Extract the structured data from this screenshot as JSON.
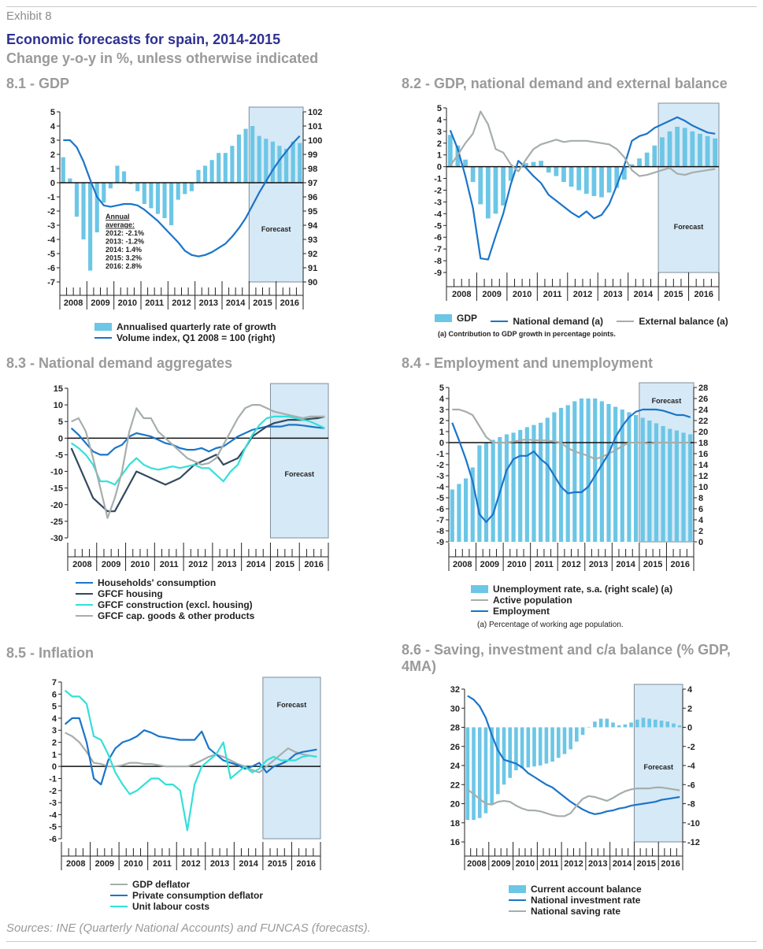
{
  "header": {
    "exhibit": "Exhibit 8",
    "title": "Economic forecasts for spain, 2014-2015",
    "subtitle": "Change y-o-y in %, unless otherwise indicated"
  },
  "sources": "Sources: INE (Quarterly National Accounts) and FUNCAS (forecasts).",
  "colors": {
    "bar": "#6cc6e6",
    "dark_blue": "#1b75c9",
    "gray": "#a6aeab",
    "navy": "#34495e",
    "cyan": "#33e0d8",
    "forecast_fill": "#d6e9f6",
    "forecast_border": "#7d8d9a"
  },
  "chart_data": [
    {
      "id": "8.1",
      "title": "8.1 - GDP",
      "type": "bar",
      "years": [
        "2008",
        "2009",
        "2010",
        "2011",
        "2012",
        "2013",
        "2014",
        "2015",
        "2016"
      ],
      "ylim": [
        -7,
        5
      ],
      "yticks": [
        5,
        4,
        3,
        2,
        1,
        0,
        -1,
        -2,
        -3,
        -4,
        -5,
        -6,
        -7
      ],
      "y2lim": [
        90,
        102
      ],
      "y2ticks": [
        102,
        101,
        100,
        99,
        98,
        97,
        96,
        95,
        94,
        93,
        92,
        91,
        90
      ],
      "forecast_from_quarter": 28,
      "forecast_label": "Forecast",
      "annotation": [
        "Annual",
        "average:",
        "2012:  -2.1%",
        "2013:  -1.2%",
        "2014:   1.4%",
        "2015:   3.2%",
        "2016:   2.8%"
      ],
      "series": [
        {
          "name": "Annualised quarterly rate of growth",
          "kind": "bar",
          "color": "#6cc6e6",
          "values": [
            1.8,
            0.3,
            -2.4,
            -4.0,
            -6.2,
            -3.5,
            -1.4,
            -0.4,
            1.2,
            0.8,
            -0.1,
            -0.6,
            -1.5,
            -1.8,
            -2.2,
            -2.5,
            -3.0,
            -1.2,
            -0.8,
            -0.6,
            0.9,
            1.2,
            1.6,
            2.1,
            2.1,
            2.6,
            3.4,
            3.8,
            4.0,
            3.3,
            3.1,
            2.9,
            2.6,
            2.4,
            2.9,
            2.8
          ]
        },
        {
          "name": "Volume index, Q1 2008 = 100 (right)",
          "kind": "line",
          "axis": "right",
          "color": "#1b75c9",
          "values": [
            100.0,
            100.0,
            99.5,
            98.5,
            97.2,
            96.0,
            95.4,
            95.3,
            95.4,
            95.5,
            95.5,
            95.4,
            95.1,
            94.7,
            94.3,
            93.8,
            93.3,
            92.8,
            92.2,
            91.9,
            91.8,
            91.9,
            92.1,
            92.4,
            92.7,
            93.2,
            93.8,
            94.5,
            95.4,
            96.3,
            97.1,
            97.9,
            98.6,
            99.2,
            99.8,
            100.3
          ]
        }
      ]
    },
    {
      "id": "8.2",
      "title": "8.2 - GDP, national demand and external balance",
      "type": "bar",
      "years": [
        "2008",
        "2009",
        "2010",
        "2011",
        "2012",
        "2013",
        "2014",
        "2015",
        "2016"
      ],
      "ylim": [
        -9,
        5
      ],
      "yticks": [
        5,
        4,
        3,
        2,
        1,
        0,
        -1,
        -2,
        -3,
        -4,
        -5,
        -6,
        -7,
        -8,
        -9
      ],
      "forecast_from_quarter": 28,
      "forecast_label": "Forecast",
      "note": "(a) Contribution to GDP growth in percentage points.",
      "series": [
        {
          "name": "GDP",
          "kind": "bar",
          "color": "#6cc6e6",
          "values": [
            2.7,
            1.8,
            0.6,
            -1.3,
            -3.2,
            -4.4,
            -4.0,
            -3.3,
            -1.2,
            -0.1,
            0.3,
            0.4,
            0.5,
            -0.5,
            -0.8,
            -1.3,
            -1.7,
            -2.0,
            -2.3,
            -2.5,
            -2.6,
            -2.2,
            -1.8,
            -1.1,
            0.2,
            0.7,
            1.2,
            1.8,
            2.5,
            3.0,
            3.4,
            3.3,
            3.0,
            2.8,
            2.6,
            2.4
          ]
        },
        {
          "name": "National demand (a)",
          "kind": "line",
          "color": "#1b75c9",
          "values": [
            3.1,
            1.5,
            -0.8,
            -3.5,
            -7.8,
            -7.9,
            -5.9,
            -4.0,
            -1.5,
            0.5,
            -0.1,
            -0.8,
            -1.4,
            -2.4,
            -2.9,
            -3.4,
            -3.9,
            -4.3,
            -3.8,
            -4.4,
            -4.1,
            -3.2,
            -1.6,
            0.1,
            2.2,
            2.6,
            2.8,
            3.3,
            3.6,
            3.9,
            4.2,
            3.9,
            3.5,
            3.2,
            2.9,
            2.8
          ]
        },
        {
          "name": "External balance (a)",
          "kind": "line",
          "color": "#a6aeab",
          "values": [
            0.1,
            1.0,
            2.0,
            2.8,
            4.7,
            3.6,
            1.5,
            1.2,
            0.2,
            -0.4,
            0.6,
            1.5,
            1.9,
            2.1,
            2.3,
            2.1,
            2.2,
            2.2,
            2.2,
            2.1,
            2.0,
            1.9,
            1.5,
            0.8,
            -0.3,
            -0.8,
            -0.7,
            -0.5,
            -0.3,
            -0.1,
            -0.6,
            -0.7,
            -0.5,
            -0.4,
            -0.3,
            -0.2
          ]
        }
      ]
    },
    {
      "id": "8.3",
      "title": "8.3 - National demand aggregates",
      "type": "line",
      "years": [
        "2008",
        "2009",
        "2010",
        "2011",
        "2012",
        "2013",
        "2014",
        "2015",
        "2016"
      ],
      "ylim": [
        -30,
        15
      ],
      "yticks": [
        15,
        10,
        5,
        0,
        -5,
        -10,
        -15,
        -20,
        -25,
        -30
      ],
      "forecast_from_quarter": 28,
      "forecast_label": "Forecast",
      "series": [
        {
          "name": "Households' consumption",
          "kind": "line",
          "color": "#1b75c9",
          "values": [
            3.0,
            1.0,
            -1.5,
            -4.0,
            -5.0,
            -5.0,
            -3.0,
            -2.0,
            0.5,
            1.5,
            1.0,
            0.5,
            -0.5,
            -1.5,
            -2.0,
            -3.0,
            -3.5,
            -3.5,
            -3.0,
            -4.0,
            -3.0,
            -2.5,
            -1.0,
            0.5,
            1.5,
            2.5,
            3.0,
            3.5,
            3.5,
            3.5,
            4.0,
            4.0,
            3.8,
            3.5,
            3.2,
            3.0
          ]
        },
        {
          "name": "GFCF housing",
          "kind": "line",
          "color": "#34495e",
          "values": [
            -3.0,
            -8.0,
            -13.0,
            -18.0,
            -20.0,
            -22.0,
            -22.0,
            -18.0,
            -14.0,
            -10.0,
            -11.0,
            -12.0,
            -13.0,
            -14.0,
            -13.0,
            -12.0,
            -10.0,
            -8.0,
            -7.0,
            -6.0,
            -5.0,
            -8.0,
            -7.0,
            -6.0,
            -3.0,
            0.5,
            2.0,
            3.5,
            4.5,
            5.0,
            5.5,
            5.5,
            5.5,
            5.8,
            6.0,
            6.5
          ]
        },
        {
          "name": "GFCF construction (excl. housing)",
          "kind": "line",
          "color": "#33e0d8",
          "values": [
            -1.5,
            -3.0,
            -5.0,
            -8.0,
            -13.0,
            -13.0,
            -14.0,
            -11.0,
            -8.0,
            -6.0,
            -8.0,
            -9.0,
            -9.5,
            -9.0,
            -8.5,
            -9.0,
            -8.5,
            -8.0,
            -9.0,
            -9.0,
            -11.0,
            -13.0,
            -10.0,
            -8.0,
            -3.0,
            1.0,
            4.0,
            6.0,
            6.5,
            6.5,
            6.5,
            6.0,
            5.5,
            5.0,
            4.0,
            3.0
          ]
        },
        {
          "name": "GFCF cap. goods & other products",
          "kind": "line",
          "color": "#a6aeab",
          "values": [
            5.0,
            6.0,
            2.0,
            -6.0,
            -15.0,
            -24.0,
            -18.0,
            -10.0,
            2.0,
            9.0,
            6.0,
            6.0,
            2.0,
            0.0,
            -2.0,
            -4.0,
            -6.0,
            -7.0,
            -8.0,
            -7.5,
            -6.0,
            -2.0,
            2.0,
            6.0,
            9.0,
            10.0,
            10.0,
            9.0,
            8.0,
            7.5,
            7.0,
            6.5,
            6.0,
            6.5,
            6.5,
            6.5
          ]
        }
      ]
    },
    {
      "id": "8.4",
      "title": "8.4 - Employment and unemployment",
      "type": "bar",
      "years": [
        "2008",
        "2009",
        "2010",
        "2011",
        "2012",
        "2013",
        "2014",
        "2015",
        "2016"
      ],
      "ylim": [
        -9,
        5
      ],
      "yticks": [
        5,
        4,
        3,
        2,
        1,
        0,
        -1,
        -2,
        -3,
        -4,
        -5,
        -6,
        -7,
        -8,
        -9
      ],
      "y2lim": [
        0,
        28
      ],
      "y2ticks": [
        28,
        26,
        24,
        22,
        20,
        18,
        16,
        14,
        12,
        10,
        8,
        6,
        4,
        2,
        0
      ],
      "forecast_from_quarter": 28,
      "forecast_label": "Forecast",
      "note": "(a) Percentage of working age population.",
      "series": [
        {
          "name": "Unemployment rate, s.a. (right scale) (a)",
          "kind": "bar",
          "axis": "right",
          "color": "#6cc6e6",
          "values": [
            9.5,
            10.5,
            11.5,
            13.5,
            17.5,
            18.0,
            18.5,
            19.0,
            19.5,
            19.8,
            20.3,
            20.8,
            21.2,
            21.6,
            22.5,
            23.5,
            24.3,
            24.8,
            25.5,
            26.0,
            26.0,
            26.0,
            25.5,
            25.0,
            24.5,
            24.0,
            23.5,
            23.0,
            22.5,
            22.0,
            21.5,
            21.0,
            20.5,
            20.2,
            19.8,
            19.5
          ]
        },
        {
          "name": "Active population",
          "kind": "line",
          "color": "#a6aeab",
          "values": [
            3.0,
            3.0,
            2.8,
            2.5,
            1.5,
            0.5,
            0.0,
            0.0,
            0.0,
            0.1,
            0.2,
            0.3,
            0.2,
            0.2,
            0.2,
            0.1,
            0.0,
            -0.5,
            -0.8,
            -1.0,
            -1.2,
            -1.5,
            -1.3,
            -1.0,
            -0.7,
            -0.3,
            0.0,
            0.0,
            0.0,
            -0.1,
            0.0,
            0.0,
            0.0,
            0.0,
            0.0,
            0.0
          ]
        },
        {
          "name": "Employment",
          "kind": "line",
          "color": "#1b75c9",
          "values": [
            1.8,
            0.2,
            -1.5,
            -3.5,
            -6.5,
            -7.2,
            -6.5,
            -4.5,
            -2.5,
            -1.5,
            -1.2,
            -1.2,
            -0.8,
            -1.5,
            -2.0,
            -3.0,
            -4.0,
            -4.6,
            -4.5,
            -4.5,
            -4.0,
            -3.0,
            -2.0,
            -1.0,
            0.5,
            1.5,
            2.3,
            2.8,
            3.0,
            3.0,
            3.0,
            2.9,
            2.7,
            2.5,
            2.5,
            2.3
          ]
        }
      ]
    },
    {
      "id": "8.5",
      "title": "8.5 - Inflation",
      "type": "line",
      "years": [
        "2008",
        "2009",
        "2010",
        "2011",
        "2012",
        "2013",
        "2014",
        "2015",
        "2016"
      ],
      "ylim": [
        -6,
        7
      ],
      "yticks": [
        7,
        6,
        5,
        4,
        3,
        2,
        1,
        0,
        -1,
        -2,
        -3,
        -4,
        -5,
        -6
      ],
      "forecast_from_quarter": 28,
      "forecast_label": "Forecast",
      "series": [
        {
          "name": "GDP deflator",
          "kind": "line",
          "color": "#a6aeab",
          "values": [
            2.8,
            2.5,
            2.0,
            1.2,
            0.3,
            0.2,
            0.0,
            0.0,
            0.1,
            0.3,
            0.3,
            0.2,
            0.2,
            0.1,
            0.0,
            0.0,
            0.0,
            0.0,
            0.2,
            0.5,
            0.8,
            1.0,
            0.8,
            0.5,
            0.2,
            0.0,
            -0.3,
            -0.5,
            0.0,
            0.5,
            1.0,
            1.5,
            1.2,
            1.0,
            0.9,
            0.8
          ]
        },
        {
          "name": "Private consumption deflator",
          "kind": "line",
          "color": "#1b75c9",
          "values": [
            3.5,
            4.0,
            4.0,
            2.0,
            -1.0,
            -1.5,
            0.5,
            1.5,
            2.0,
            2.2,
            2.5,
            3.0,
            2.8,
            2.5,
            2.4,
            2.3,
            2.2,
            2.2,
            2.2,
            2.9,
            1.5,
            1.0,
            0.5,
            0.3,
            0.1,
            -0.2,
            0.0,
            0.3,
            -0.5,
            0.0,
            0.2,
            0.5,
            1.0,
            1.2,
            1.3,
            1.4
          ]
        },
        {
          "name": "Unit labour costs",
          "kind": "line",
          "color": "#33e0d8",
          "values": [
            6.3,
            5.8,
            5.8,
            5.2,
            2.5,
            2.2,
            1.0,
            -0.5,
            -1.5,
            -2.3,
            -2.0,
            -1.5,
            -1.0,
            -1.0,
            -1.5,
            -1.5,
            -2.0,
            -5.3,
            -1.5,
            0.0,
            0.5,
            1.0,
            2.0,
            -1.0,
            -0.5,
            0.0,
            -0.5,
            -0.2,
            0.5,
            0.8,
            0.5,
            0.5,
            0.5,
            0.8,
            0.9,
            0.8
          ]
        }
      ]
    },
    {
      "id": "8.6",
      "title": "8.6 - Saving, investment and c/a balance (% GDP, 4MA)",
      "type": "bar",
      "years": [
        "2008",
        "2009",
        "2010",
        "2011",
        "2012",
        "2013",
        "2014",
        "2015",
        "2016"
      ],
      "ylim": [
        16,
        32
      ],
      "yticks": [
        32,
        30,
        28,
        26,
        24,
        22,
        20,
        18,
        16
      ],
      "y2lim": [
        -12,
        4
      ],
      "y2ticks": [
        4,
        2,
        0,
        -2,
        -4,
        -6,
        -8,
        -10,
        -12
      ],
      "forecast_from_quarter": 28,
      "forecast_label": "Forecast",
      "series": [
        {
          "name": "Current account balance",
          "kind": "bar",
          "axis": "right",
          "color": "#6cc6e6",
          "values": [
            -9.7,
            -9.7,
            -9.5,
            -9.0,
            -8.0,
            -7.0,
            -6.0,
            -5.3,
            -4.5,
            -4.3,
            -4.2,
            -4.1,
            -4.0,
            -3.8,
            -3.6,
            -3.2,
            -2.8,
            -2.3,
            -1.5,
            -0.8,
            0.0,
            0.6,
            0.9,
            0.9,
            0.5,
            0.2,
            0.3,
            0.5,
            0.8,
            1.0,
            0.9,
            0.8,
            0.7,
            0.6,
            0.4,
            0.2
          ]
        },
        {
          "name": "National investment rate",
          "kind": "line",
          "color": "#1b75c9",
          "values": [
            31.3,
            30.9,
            30.2,
            29.0,
            27.2,
            25.6,
            24.6,
            24.4,
            24.2,
            23.8,
            23.2,
            22.8,
            22.4,
            22.0,
            21.7,
            21.2,
            20.7,
            20.2,
            19.8,
            19.4,
            19.1,
            18.9,
            19.0,
            19.2,
            19.3,
            19.5,
            19.6,
            19.8,
            19.9,
            20.0,
            20.1,
            20.2,
            20.4,
            20.5,
            20.6,
            20.7
          ]
        },
        {
          "name": "National saving rate",
          "kind": "line",
          "color": "#a6aeab",
          "values": [
            21.5,
            21.0,
            20.5,
            20.0,
            19.9,
            20.2,
            20.3,
            20.2,
            19.8,
            19.5,
            19.3,
            19.3,
            19.2,
            19.0,
            18.8,
            18.7,
            18.7,
            19.0,
            19.8,
            20.5,
            20.8,
            20.7,
            20.5,
            20.3,
            20.6,
            21.0,
            21.3,
            21.5,
            21.6,
            21.6,
            21.6,
            21.7,
            21.7,
            21.6,
            21.5,
            21.4
          ]
        }
      ]
    }
  ]
}
